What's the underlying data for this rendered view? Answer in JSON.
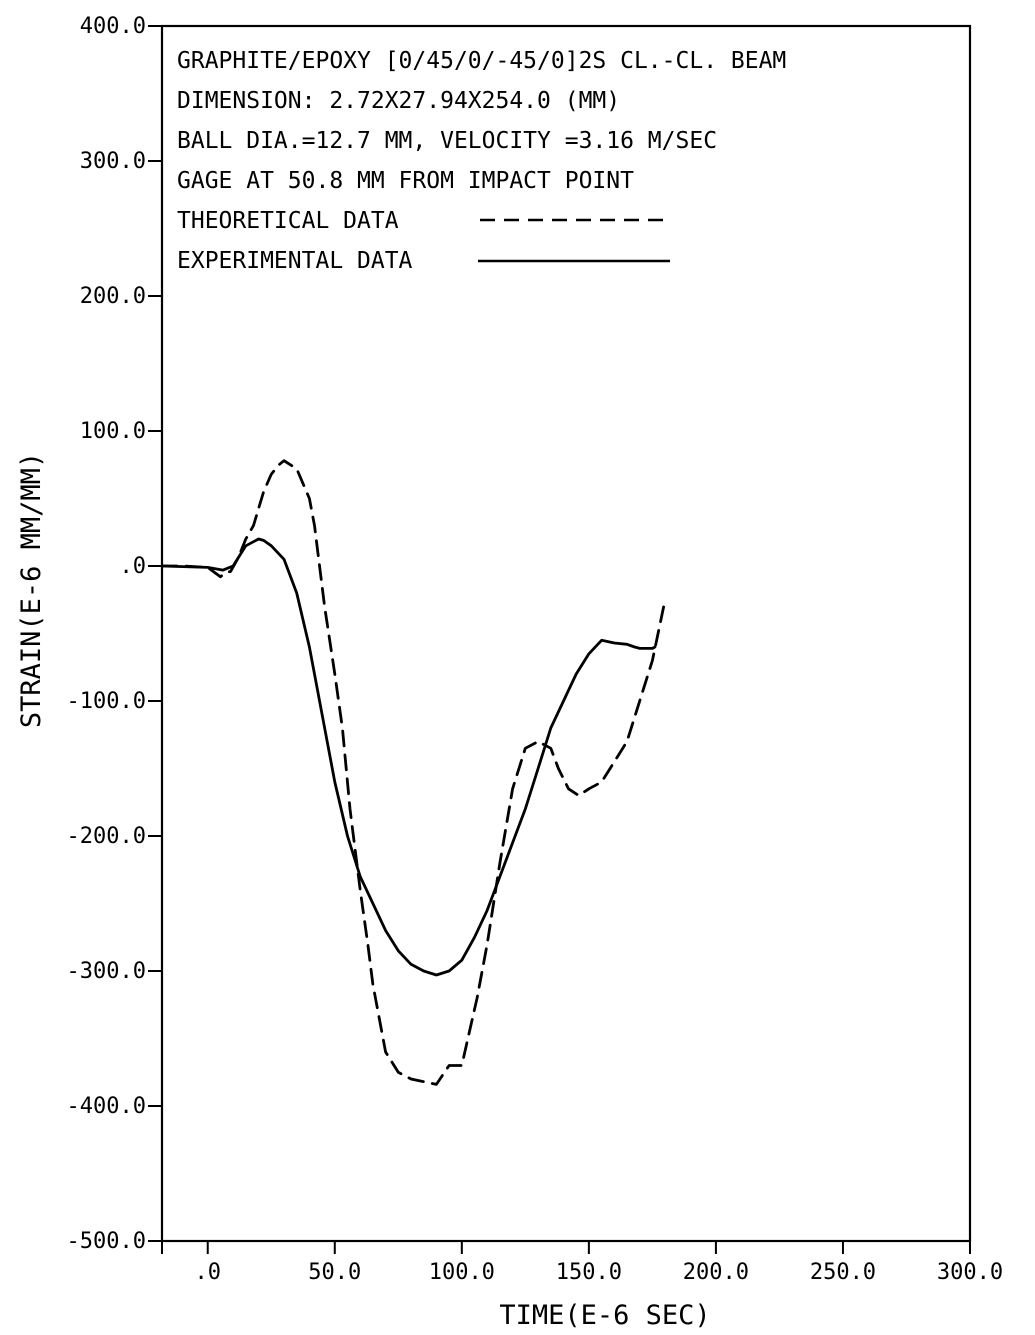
{
  "chart_data": {
    "type": "line",
    "xlabel": "TIME(E-6 SEC)",
    "ylabel": "STRAIN(E-6 MM/MM)",
    "xlim": [
      -18,
      300
    ],
    "ylim": [
      -500,
      400
    ],
    "x_ticks": [
      {
        "value": -18,
        "label": ""
      },
      {
        "value": 0,
        "label": ".0"
      },
      {
        "value": 50,
        "label": "50.0"
      },
      {
        "value": 100,
        "label": "100.0"
      },
      {
        "value": 150,
        "label": "150.0"
      },
      {
        "value": 200,
        "label": "200.0"
      },
      {
        "value": 250,
        "label": "250.0"
      },
      {
        "value": 300,
        "label": "300.0"
      }
    ],
    "y_ticks": [
      {
        "value": 400,
        "label": "400.0"
      },
      {
        "value": 300,
        "label": "300.0"
      },
      {
        "value": 200,
        "label": "200.0"
      },
      {
        "value": 100,
        "label": "100.0"
      },
      {
        "value": 0,
        "label": ".0"
      },
      {
        "value": -100,
        "label": "-100.0"
      },
      {
        "value": -200,
        "label": "-200.0"
      },
      {
        "value": -300,
        "label": "-300.0"
      },
      {
        "value": -400,
        "label": "-400.0"
      },
      {
        "value": -500,
        "label": "-500.0"
      }
    ],
    "annotations": [
      "GRAPHITE/EPOXY [0/45/0/-45/0]2S CL.-CL. BEAM",
      "DIMENSION: 2.72X27.94X254.0 (MM)",
      "BALL DIA.=12.7 MM, VELOCITY =3.16 M/SEC",
      "GAGE AT 50.8 MM FROM IMPACT POINT"
    ],
    "grid": false,
    "legend_position": "top-left",
    "series": [
      {
        "name": "THEORETICAL DATA",
        "style": "dashed",
        "color": "#000000",
        "x": [
          -18,
          -10,
          0,
          5,
          7,
          9,
          12,
          15,
          18,
          22,
          25,
          28,
          30,
          35,
          40,
          42,
          46,
          50,
          53,
          56,
          60,
          63,
          65,
          70,
          75,
          80,
          85,
          90,
          95,
          100,
          103,
          106,
          110,
          115,
          120,
          125,
          130,
          135,
          138,
          142,
          146,
          150,
          155,
          160,
          165,
          170,
          175,
          180
        ],
        "y": [
          0,
          0,
          -1,
          -8,
          -5,
          -4,
          6,
          20,
          30,
          55,
          68,
          75,
          78,
          72,
          50,
          30,
          -30,
          -80,
          -120,
          -180,
          -240,
          -280,
          -310,
          -360,
          -375,
          -380,
          -382,
          -384,
          -370,
          -370,
          -345,
          -320,
          -280,
          -220,
          -165,
          -135,
          -130,
          -135,
          -150,
          -165,
          -170,
          -165,
          -160,
          -145,
          -130,
          -100,
          -70,
          -25
        ]
      },
      {
        "name": "EXPERIMENTAL DATA",
        "style": "solid",
        "color": "#000000",
        "x": [
          -18,
          0,
          6,
          10,
          15,
          18,
          20,
          22,
          25,
          30,
          35,
          40,
          45,
          50,
          55,
          60,
          65,
          70,
          75,
          80,
          85,
          90,
          95,
          100,
          105,
          110,
          115,
          120,
          125,
          130,
          135,
          140,
          145,
          150,
          155,
          160,
          165,
          168,
          170,
          172,
          175,
          176
        ],
        "y": [
          0,
          -1,
          -3,
          0,
          15,
          18,
          20,
          19,
          15,
          5,
          -20,
          -60,
          -110,
          -160,
          -200,
          -230,
          -250,
          -270,
          -285,
          -295,
          -300,
          -303,
          -300,
          -292,
          -275,
          -255,
          -230,
          -205,
          -180,
          -150,
          -120,
          -100,
          -80,
          -65,
          -55,
          -57,
          -58,
          -60,
          -61,
          -61,
          -61,
          -60
        ]
      }
    ]
  }
}
